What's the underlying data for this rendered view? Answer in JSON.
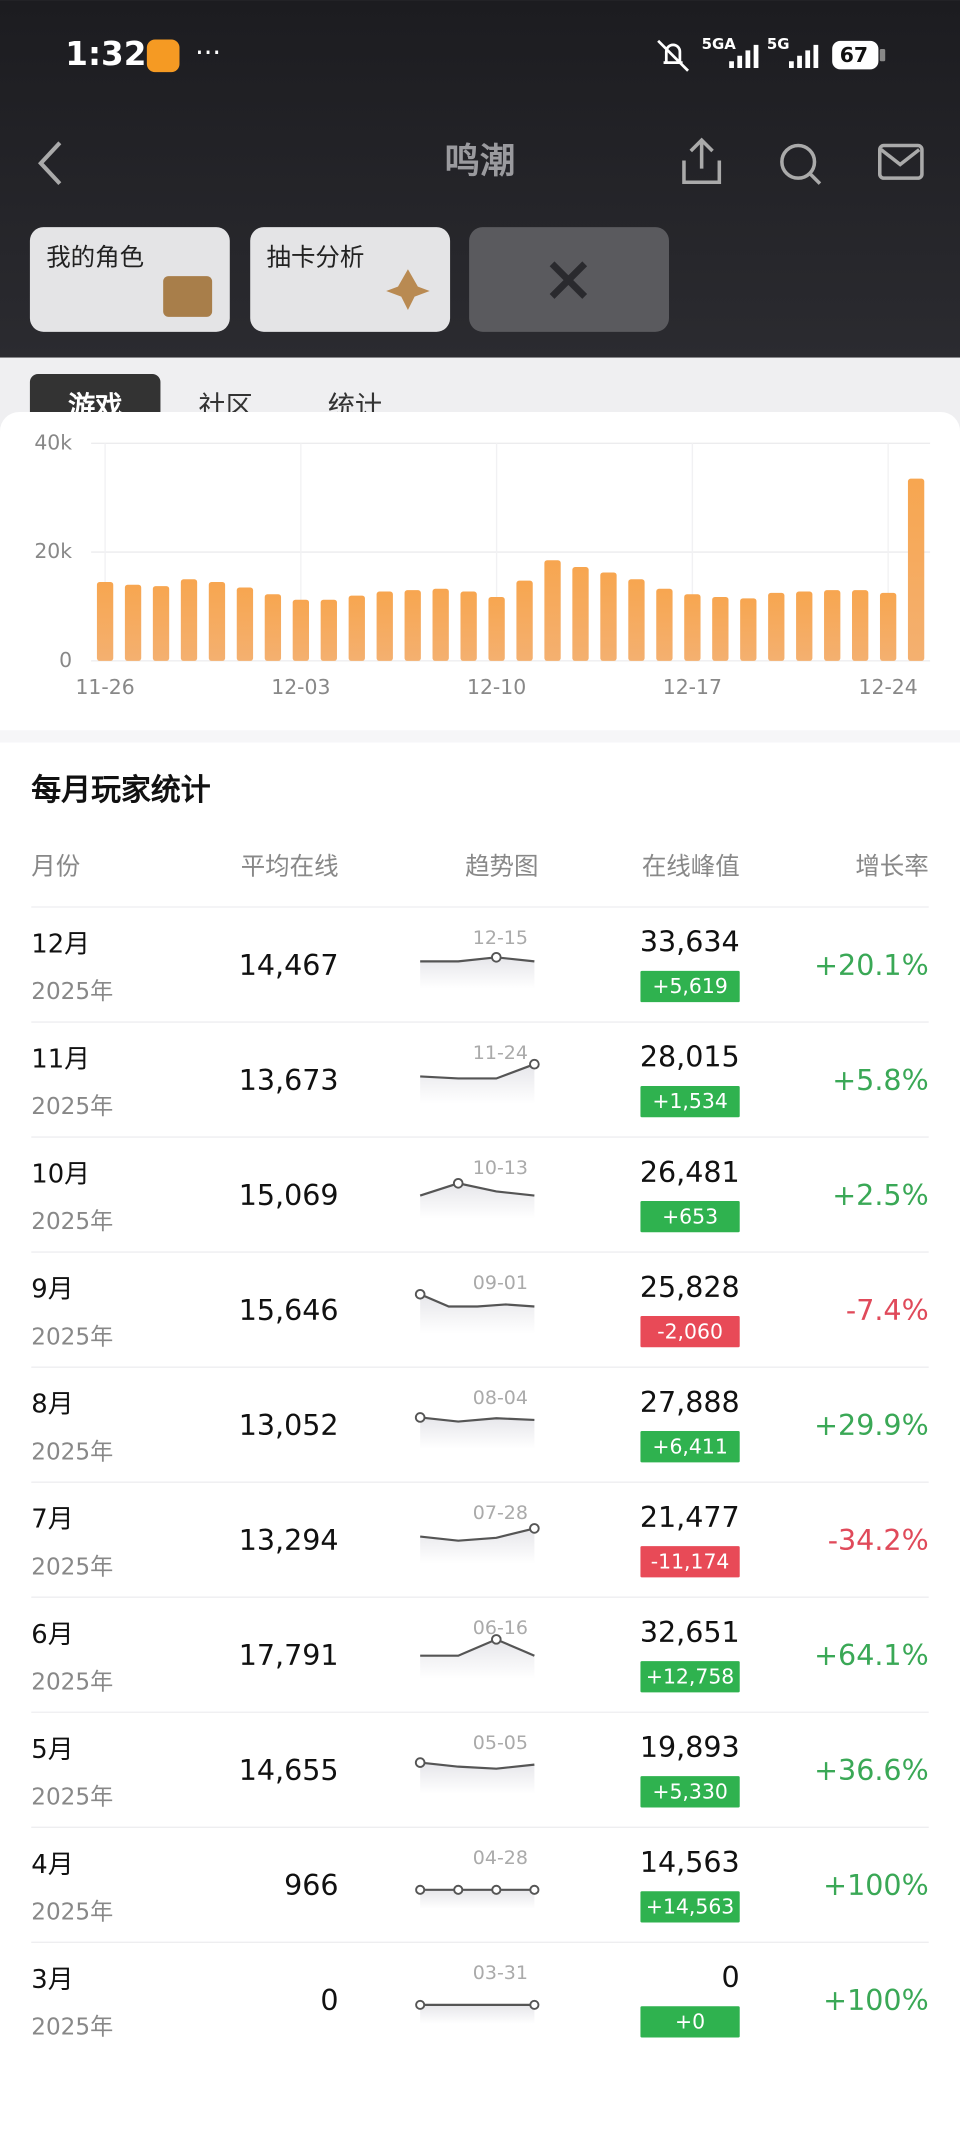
{
  "status_bar": {
    "time": "1:32",
    "network1": "5GA",
    "network2": "5G",
    "battery": "67"
  },
  "header": {
    "title": "鸣潮"
  },
  "cards": [
    {
      "label": "我的角色"
    },
    {
      "label": "抽卡分析"
    }
  ],
  "tabs": [
    "游戏",
    "社区",
    "统计"
  ],
  "chart_data": {
    "type": "bar",
    "color": "#f6a24c",
    "categories": [
      "11-26",
      null,
      null,
      null,
      null,
      null,
      null,
      "12-03",
      null,
      null,
      null,
      null,
      null,
      null,
      "12-10",
      null,
      null,
      null,
      null,
      null,
      null,
      "12-17",
      null,
      null,
      null,
      null,
      null,
      null,
      "12-24",
      null
    ],
    "values": [
      14500,
      14000,
      13750,
      15000,
      14500,
      13500,
      12250,
      11250,
      11250,
      12000,
      12750,
      13000,
      13250,
      12750,
      11750,
      14750,
      18500,
      17250,
      16250,
      15000,
      13250,
      12250,
      11750,
      11500,
      12500,
      12750,
      13000,
      13000,
      12500,
      33500
    ],
    "ylim": [
      0,
      40000
    ],
    "yticks": [
      {
        "value": 0,
        "label": "0"
      },
      {
        "value": 20000,
        "label": "20k"
      },
      {
        "value": 40000,
        "label": "40k"
      }
    ],
    "grid": true
  },
  "monthly_stats": {
    "title": "每月玩家统计",
    "columns": [
      "月份",
      "平均在线",
      "趋势图",
      "在线峰值",
      "增长率"
    ],
    "rows": [
      {
        "month": "12月",
        "year": "2025年",
        "avg": "14,467",
        "trend_label": "12-15",
        "trend": [
          2,
          2,
          3,
          2
        ],
        "peak_index": 2,
        "peak": "33,634",
        "delta": "+5,619",
        "growth": "+20.1%"
      },
      {
        "month": "11月",
        "year": "2025年",
        "avg": "13,673",
        "trend_label": "11-24",
        "trend": [
          2,
          1.5,
          1.5,
          5
        ],
        "peak_index": 3,
        "peak": "28,015",
        "delta": "+1,534",
        "growth": "+5.8%"
      },
      {
        "month": "10月",
        "year": "2025年",
        "avg": "15,069",
        "trend_label": "10-13",
        "trend": [
          1,
          4,
          2,
          1
        ],
        "peak_index": 1,
        "peak": "26,481",
        "delta": "+653",
        "growth": "+2.5%"
      },
      {
        "month": "9月",
        "year": "2025年",
        "avg": "15,646",
        "trend_label": "09-01",
        "trend": [
          5,
          2,
          2,
          2.5,
          2
        ],
        "peak_index": 0,
        "peak": "25,828",
        "delta": "-2,060",
        "growth": "-7.4%"
      },
      {
        "month": "8月",
        "year": "2025年",
        "avg": "13,052",
        "trend_label": "08-04",
        "trend": [
          3,
          2,
          2.8,
          2.4
        ],
        "peak_index": 0,
        "peak": "27,888",
        "delta": "+6,411",
        "growth": "+29.9%"
      },
      {
        "month": "7月",
        "year": "2025年",
        "avg": "13,294",
        "trend_label": "07-28",
        "trend": [
          2,
          1,
          1.7,
          4
        ],
        "peak_index": 3,
        "peak": "21,477",
        "delta": "-11,174",
        "growth": "-34.2%"
      },
      {
        "month": "6月",
        "year": "2025年",
        "avg": "17,791",
        "trend_label": "06-16",
        "trend": [
          1,
          1,
          5,
          1
        ],
        "peak_index": 2,
        "peak": "32,651",
        "delta": "+12,758",
        "growth": "+64.1%"
      },
      {
        "month": "5月",
        "year": "2025年",
        "avg": "14,655",
        "trend_label": "05-05",
        "trend": [
          3,
          2,
          1.5,
          2.5
        ],
        "peak_index": 0,
        "peak": "19,893",
        "delta": "+5,330",
        "growth": "+36.6%"
      },
      {
        "month": "4月",
        "year": "2025年",
        "avg": "966",
        "trend_label": "04-28",
        "trend": [
          0,
          0,
          0,
          0
        ],
        "peak_index": null,
        "peak": "14,563",
        "delta": "+14,563",
        "growth": "+100%"
      },
      {
        "month": "3月",
        "year": "2025年",
        "avg": "0",
        "trend_label": "03-31",
        "trend": [
          0,
          0
        ],
        "peak_index": null,
        "peak": "0",
        "delta": "+0",
        "growth": "+100%"
      }
    ]
  }
}
